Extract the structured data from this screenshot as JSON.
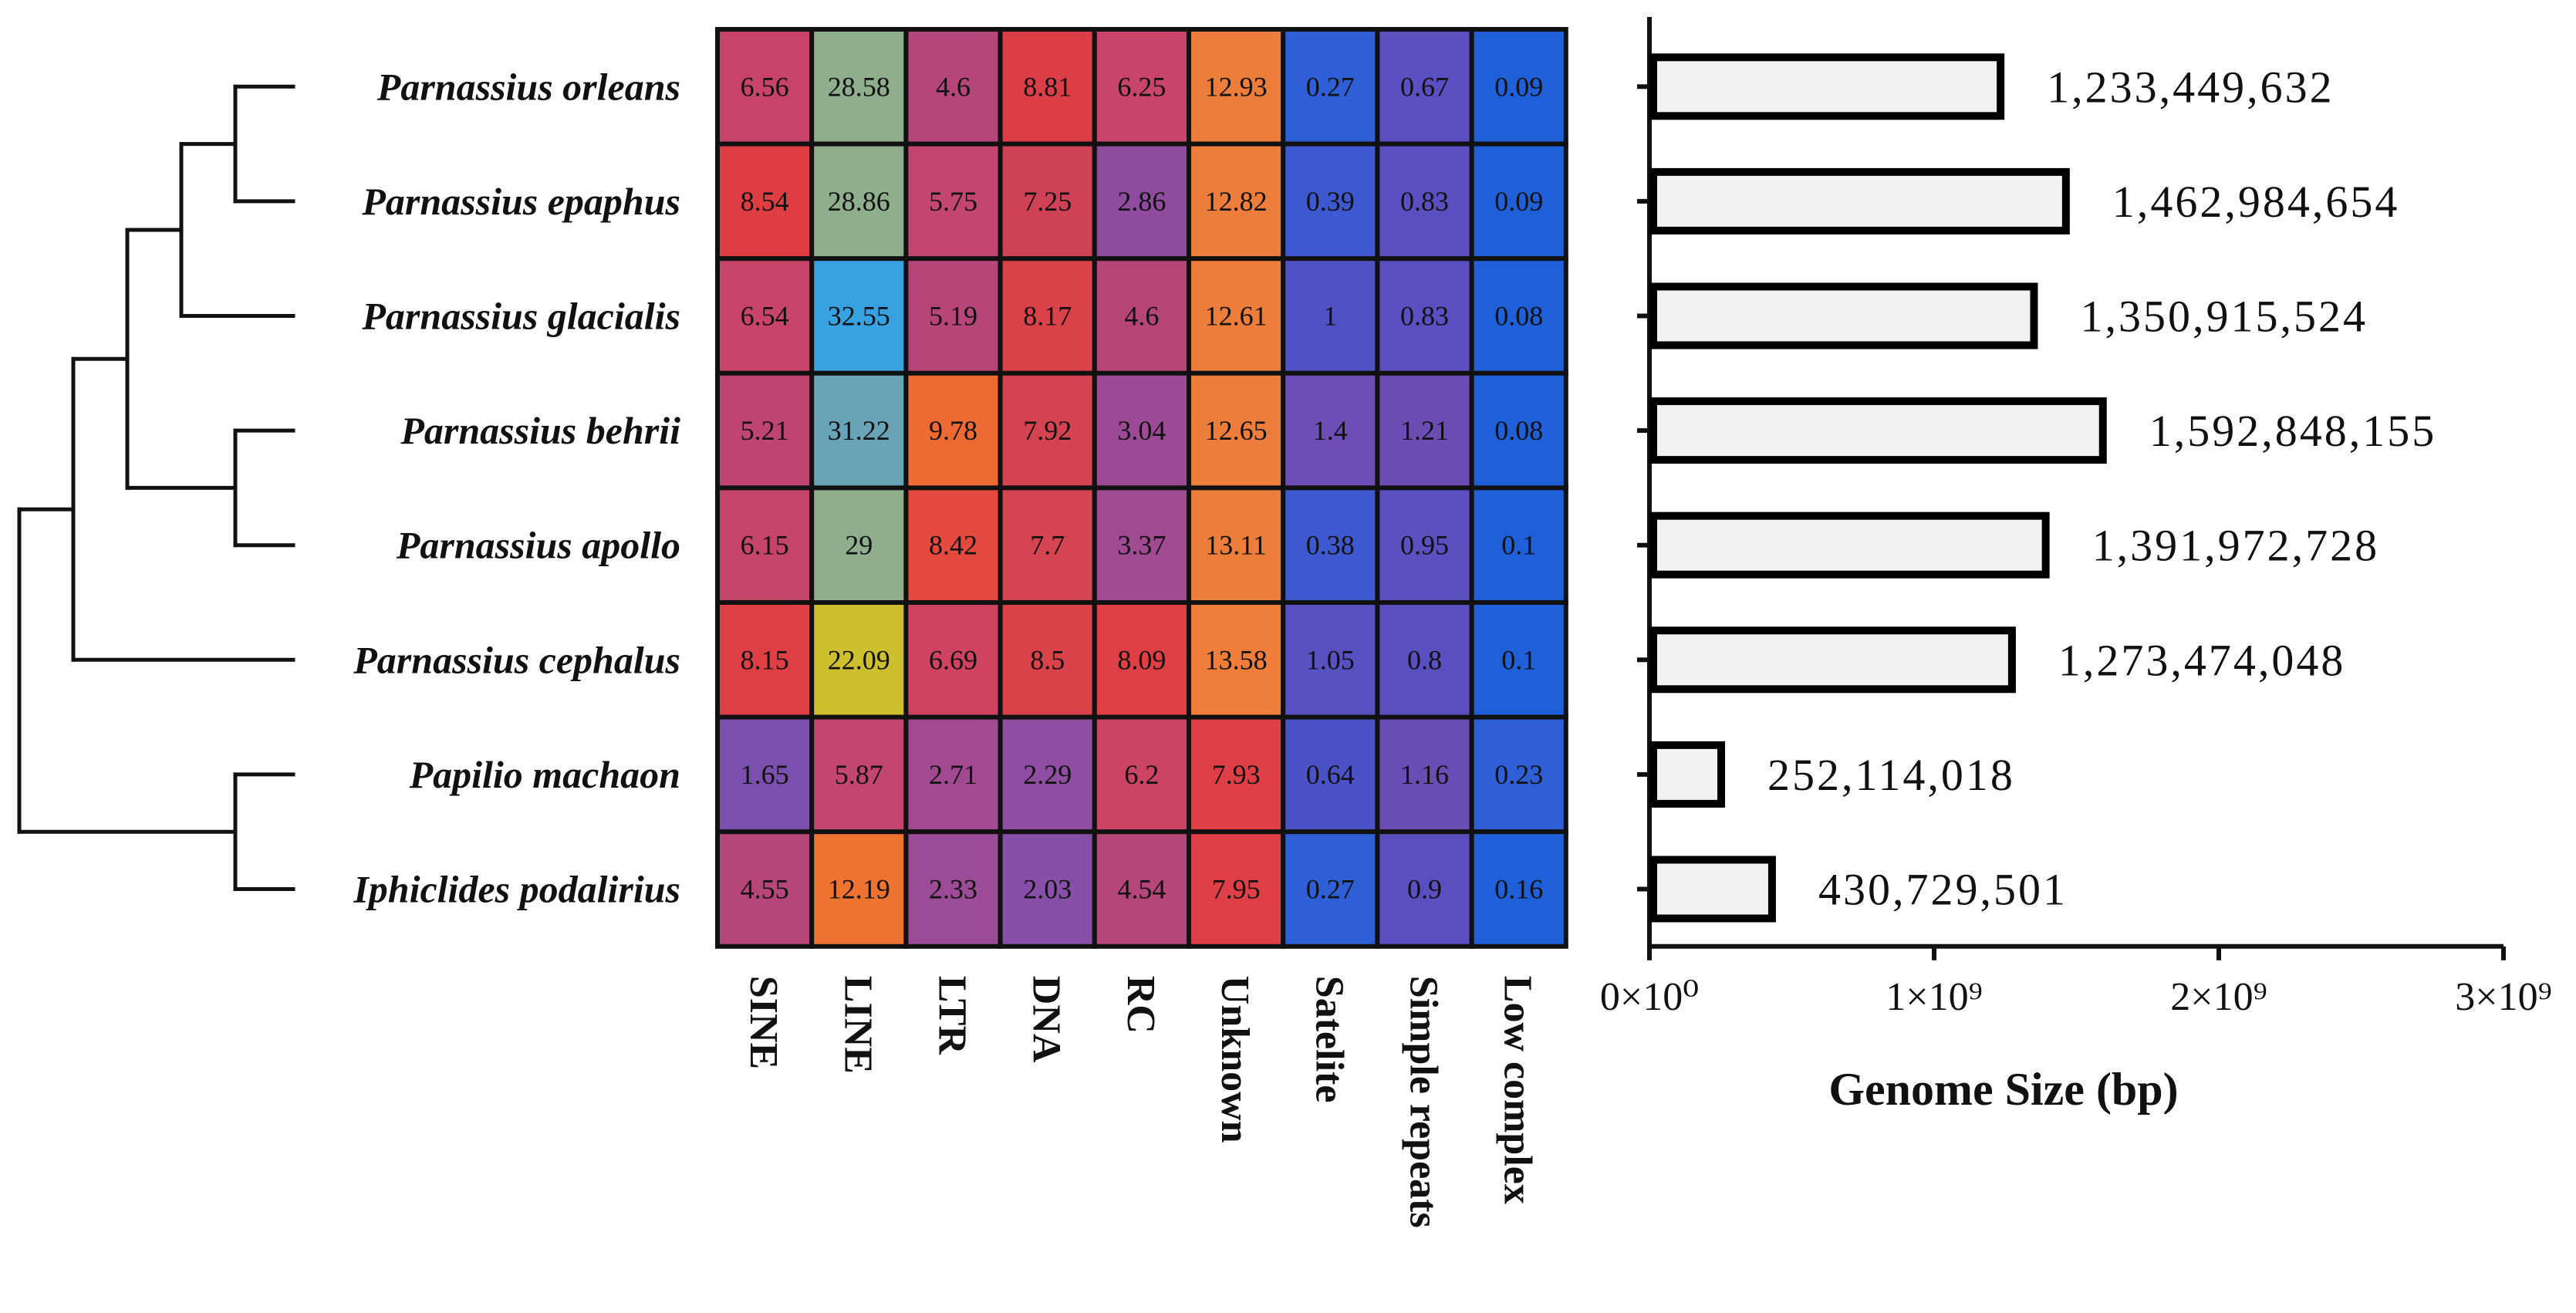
{
  "chart_data": [
    {
      "type": "tree",
      "title": "",
      "leaves": [
        "Parnassius orleans",
        "Parnassius epaphus",
        "Parnassius glacialis",
        "Parnassius behrii",
        "Parnassius apollo",
        "Parnassius cephalus",
        "Papilio machaon",
        "Iphiclides podalirius"
      ],
      "topology": "((((Parnassius orleans,Parnassius epaphus),Parnassius glacialis),(Parnassius behrii,Parnassius apollo)),Parnassius cephalus),(Papilio machaon,Iphiclides podalirius)"
    },
    {
      "type": "heatmap",
      "title": "",
      "rows": [
        "Parnassius orleans",
        "Parnassius epaphus",
        "Parnassius glacialis",
        "Parnassius behrii",
        "Parnassius apollo",
        "Parnassius cephalus",
        "Papilio machaon",
        "Iphiclides podalirius"
      ],
      "columns": [
        "SINE",
        "LINE",
        "LTR",
        "DNA",
        "RC",
        "Unknown",
        "Satelite",
        "Simple repeats",
        "Low complex"
      ],
      "values": [
        [
          "6.56",
          "28.58",
          "4.6",
          "8.81",
          "6.25",
          "12.93",
          "0.27",
          "0.67",
          "0.09"
        ],
        [
          "8.54",
          "28.86",
          "5.75",
          "7.25",
          "2.86",
          "12.82",
          "0.39",
          "0.83",
          "0.09"
        ],
        [
          "6.54",
          "32.55",
          "5.19",
          "8.17",
          "4.6",
          "12.61",
          "1",
          "0.83",
          "0.08"
        ],
        [
          "5.21",
          "31.22",
          "9.78",
          "7.92",
          "3.04",
          "12.65",
          "1.4",
          "1.21",
          "0.08"
        ],
        [
          "6.15",
          "29",
          "8.42",
          "7.7",
          "3.37",
          "13.11",
          "0.38",
          "0.95",
          "0.1"
        ],
        [
          "8.15",
          "22.09",
          "6.69",
          "8.5",
          "8.09",
          "13.58",
          "1.05",
          "0.8",
          "0.1"
        ],
        [
          "1.65",
          "5.87",
          "2.71",
          "2.29",
          "6.2",
          "7.93",
          "0.64",
          "1.16",
          "0.23"
        ],
        [
          "4.55",
          "12.19",
          "2.33",
          "2.03",
          "4.54",
          "7.95",
          "0.27",
          "0.9",
          "0.16"
        ]
      ],
      "cell_colors": [
        [
          "#c74468",
          "#8fae8c",
          "#b4467a",
          "#dc3e48",
          "#c8446a",
          "#ec7d3b",
          "#2f5fd6",
          "#5a4fc0",
          "#1f5fd8"
        ],
        [
          "#de3e42",
          "#8fae8c",
          "#c34670",
          "#cf4256",
          "#8f4b9d",
          "#ec7d3b",
          "#3d58d0",
          "#5a4fc0",
          "#1f5fd8"
        ],
        [
          "#c84469",
          "#38a1e0",
          "#b74678",
          "#d94248",
          "#b54577",
          "#ec7d3b",
          "#4f51c4",
          "#5a4fc0",
          "#1f5fd8"
        ],
        [
          "#bd456f",
          "#69a3b8",
          "#ed6a33",
          "#d44350",
          "#9c4a95",
          "#ec7d3b",
          "#6d4db6",
          "#6b4cb3",
          "#1f5fd8"
        ],
        [
          "#c54469",
          "#8fae8c",
          "#e34a3d",
          "#d54451",
          "#a04a92",
          "#ec7d3b",
          "#3e58cf",
          "#5b50c0",
          "#1f5fd8"
        ],
        [
          "#dd3f44",
          "#cdbf2e",
          "#cf4360",
          "#d94249",
          "#dd3f44",
          "#ee7e3a",
          "#5850c0",
          "#5a4fc0",
          "#1f5fd8"
        ],
        [
          "#7a4fae",
          "#c24670",
          "#a14a92",
          "#8f4ea2",
          "#cc4464",
          "#de3f46",
          "#4a52c5",
          "#6a4db4",
          "#2f5fd6"
        ],
        [
          "#b4467a",
          "#ed7331",
          "#9c4b96",
          "#874fa8",
          "#b4467a",
          "#de3f46",
          "#2f5fd6",
          "#5a4fc0",
          "#1f5fd8"
        ]
      ]
    },
    {
      "type": "bar",
      "orientation": "horizontal",
      "title": "",
      "categories": [
        "Parnassius orleans",
        "Parnassius epaphus",
        "Parnassius glacialis",
        "Parnassius behrii",
        "Parnassius apollo",
        "Parnassius cephalus",
        "Papilio machaon",
        "Iphiclides podalirius"
      ],
      "values": [
        1233449632,
        1462984654,
        1350915524,
        1592848155,
        1391972728,
        1273474048,
        252114018,
        430729501
      ],
      "data_labels": [
        "1,233,449,632",
        "1,462,984,654",
        "1,350,915,524",
        "1,592,848,155",
        "1,391,972,728",
        "1,273,474,048",
        "252,114,018",
        "430,729,501"
      ],
      "xlabel": "Genome Size (bp)",
      "ylabel": "",
      "xlim": [
        0,
        3000000000
      ],
      "ticks": [
        0,
        1000000000,
        2000000000,
        3000000000
      ],
      "tick_labels": [
        "0×10⁰",
        "1×10⁹",
        "2×10⁹",
        "3×10⁹"
      ]
    }
  ]
}
